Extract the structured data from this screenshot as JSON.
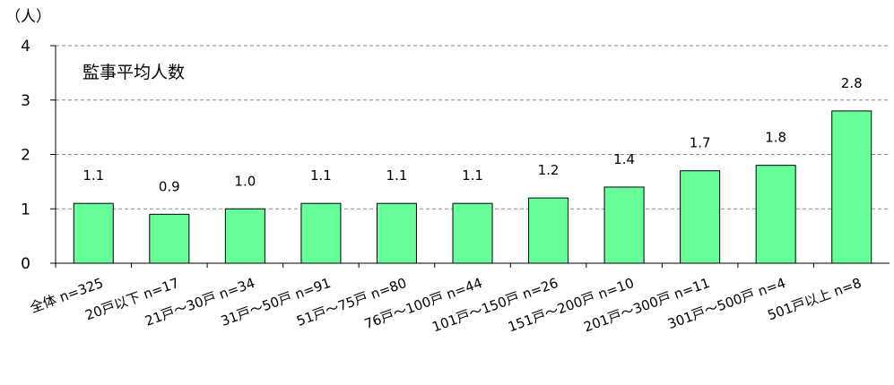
{
  "chart_data": {
    "type": "bar",
    "title": "監事平均人数",
    "ylabel": "（人）",
    "xlabel": "",
    "ylim": [
      0,
      4
    ],
    "yticks": [
      0,
      1,
      2,
      3,
      4
    ],
    "grid": true,
    "bar_color": "#66FF99",
    "categories": [
      "全体 n=325",
      "20戸以下 n=17",
      "21戸～30戸 n=34",
      "31戸～50戸 n=91",
      "51戸～75戸 n=80",
      "76戸～100戸 n=44",
      "101戸～150戸 n=26",
      "151戸～200戸 n=10",
      "201戸～300戸 n=11",
      "301戸～500戸 n=4",
      "501戸以上 n=8"
    ],
    "values": [
      1.1,
      0.9,
      1.0,
      1.1,
      1.1,
      1.1,
      1.2,
      1.4,
      1.7,
      1.8,
      2.8
    ],
    "value_labels": [
      "1.1",
      "0.9",
      "1.0",
      "1.1",
      "1.1",
      "1.1",
      "1.2",
      "1.4",
      "1.7",
      "1.8",
      "2.8"
    ]
  }
}
